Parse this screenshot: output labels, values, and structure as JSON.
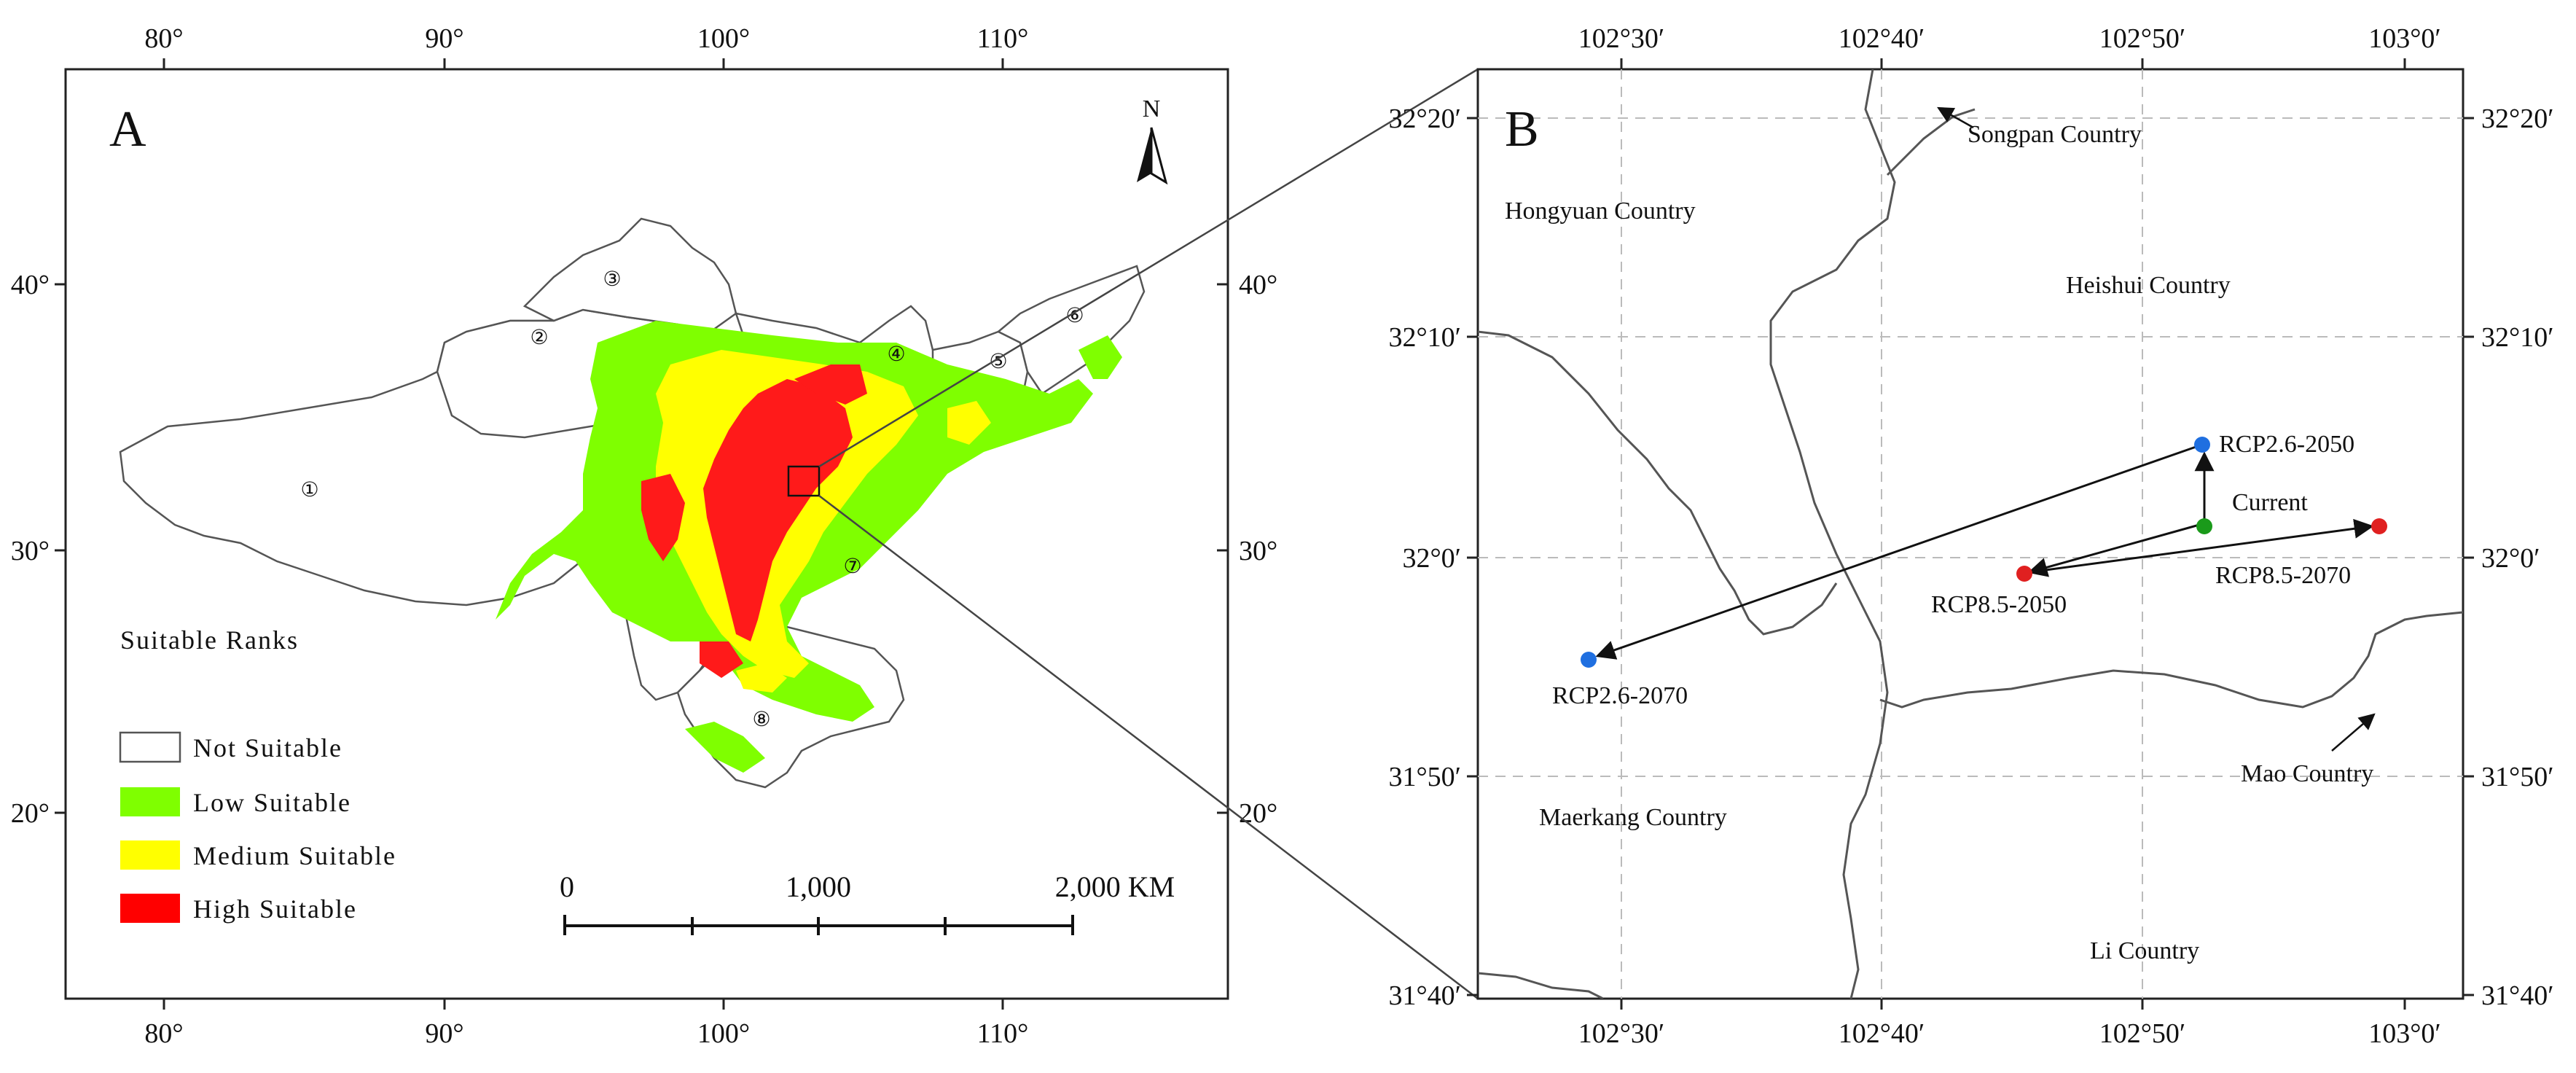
{
  "panel_a": {
    "label": "A",
    "north_label": "N",
    "top_ticks": [
      "80°",
      "90°",
      "100°",
      "110°"
    ],
    "bottom_ticks": [
      "80°",
      "90°",
      "100°",
      "110°"
    ],
    "left_ticks": [
      "40°",
      "30°",
      "20°"
    ],
    "right_ticks": [
      "40°",
      "30°",
      "20°"
    ],
    "region_numbers": [
      "①",
      "②",
      "③",
      "④",
      "⑤",
      "⑥",
      "⑦",
      "⑧"
    ],
    "legend": {
      "title": "Suitable Ranks",
      "items": [
        {
          "label": "Not  Suitable",
          "color": "#ffffff"
        },
        {
          "label": "Low Suitable",
          "color": "#7fff00"
        },
        {
          "label": "Medium Suitable",
          "color": "#ffff00"
        },
        {
          "label": "High Suitable",
          "color": "#ff0000"
        }
      ]
    },
    "scale_bar": {
      "labels": [
        "0",
        "1,000",
        "2,000 KM"
      ]
    }
  },
  "panel_b": {
    "label": "B",
    "top_ticks": [
      "102°30′",
      "102°40′",
      "102°50′",
      "103°0′"
    ],
    "bottom_ticks": [
      "102°30′",
      "102°40′",
      "102°50′",
      "103°0′"
    ],
    "left_ticks": [
      "32°20′",
      "32°10′",
      "32°0′",
      "31°50′",
      "31°40′"
    ],
    "right_ticks": [
      "32°20′",
      "32°10′",
      "32°0′",
      "31°50′",
      "31°40′"
    ],
    "counties": {
      "songpan": "Songpan Country",
      "hongyuan": "Hongyuan Country",
      "heishui": "Heishui Country",
      "maerkang": "Maerkang Country",
      "mao": "Mao Country",
      "li": "Li Country"
    },
    "points": {
      "rcp26_2050": {
        "label": "RCP2.6-2050",
        "color": "#1f6fe0"
      },
      "current": {
        "label": "Current",
        "color": "#1a9a1a"
      },
      "rcp85_2050": {
        "label": "RCP8.5-2050",
        "color": "#e02020"
      },
      "rcp85_2070": {
        "label": "RCP8.5-2070",
        "color": "#e02020"
      },
      "rcp26_2070": {
        "label": "RCP2.6-2070",
        "color": "#1f6fe0"
      }
    }
  }
}
